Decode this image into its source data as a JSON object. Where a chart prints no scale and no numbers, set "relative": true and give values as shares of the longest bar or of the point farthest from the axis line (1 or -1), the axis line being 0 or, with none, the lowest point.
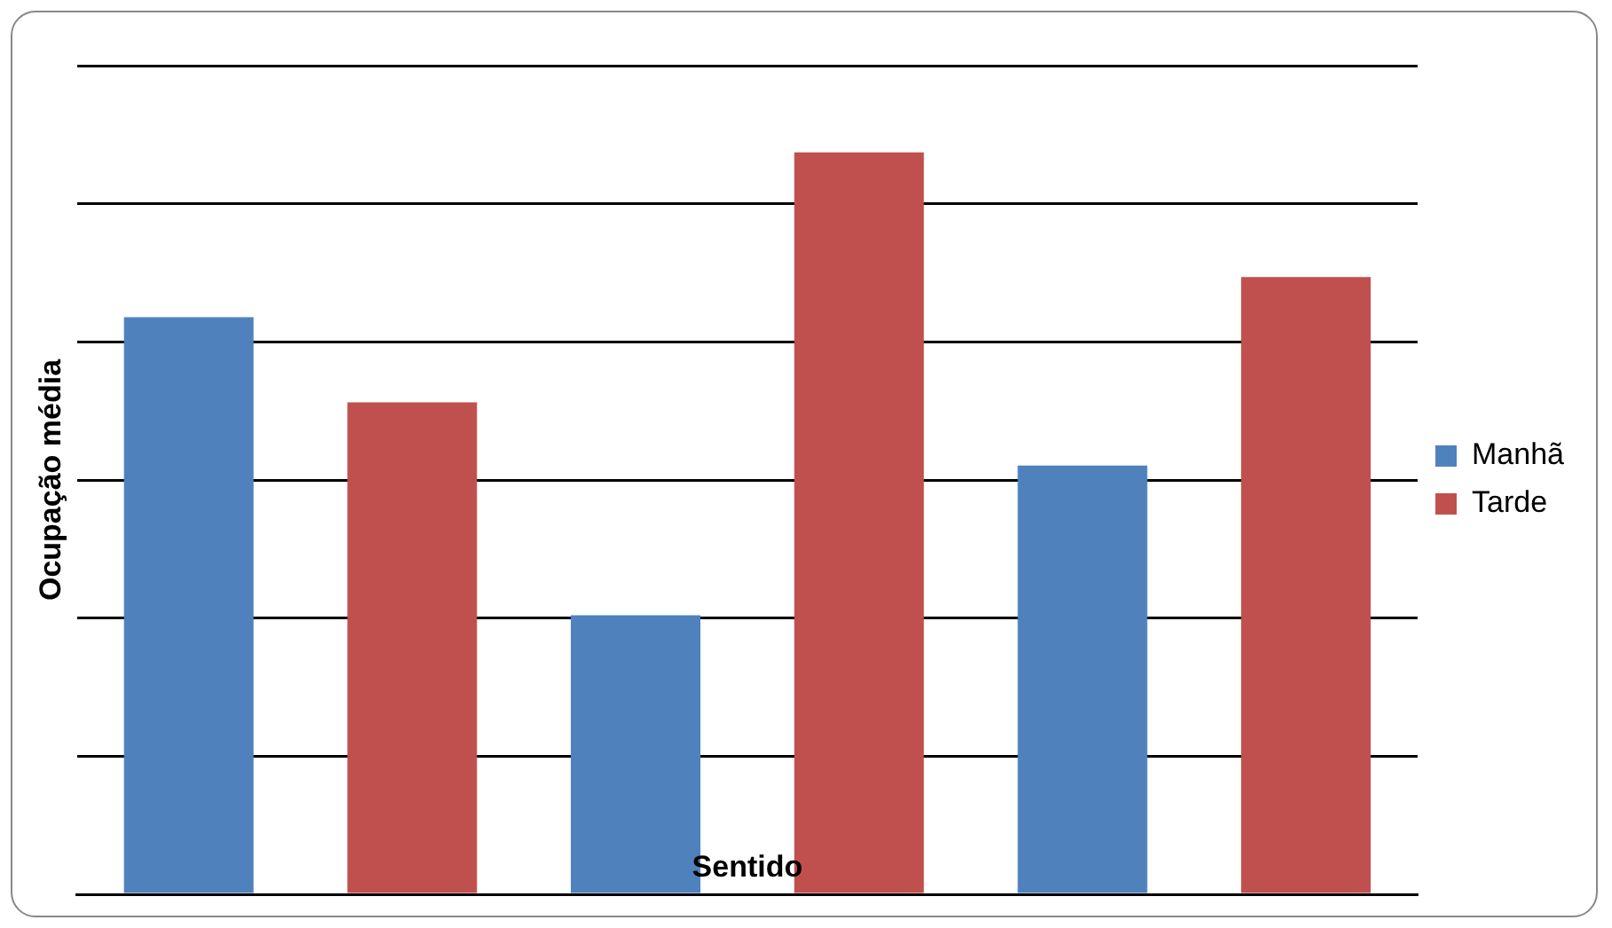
{
  "chart_data": {
    "type": "bar",
    "relative": true,
    "xlabel": "Sentido",
    "ylabel": "Ocupação média",
    "categories": [
      null,
      null,
      null
    ],
    "series": [
      {
        "name": "Manhã",
        "color": "#4f81bd",
        "values": [
          0.778,
          0.376,
          0.578
        ]
      },
      {
        "name": "Tarde",
        "color": "#c0504d",
        "values": [
          0.663,
          1,
          0.832
        ]
      }
    ],
    "grid": "y",
    "legend": "right"
  }
}
